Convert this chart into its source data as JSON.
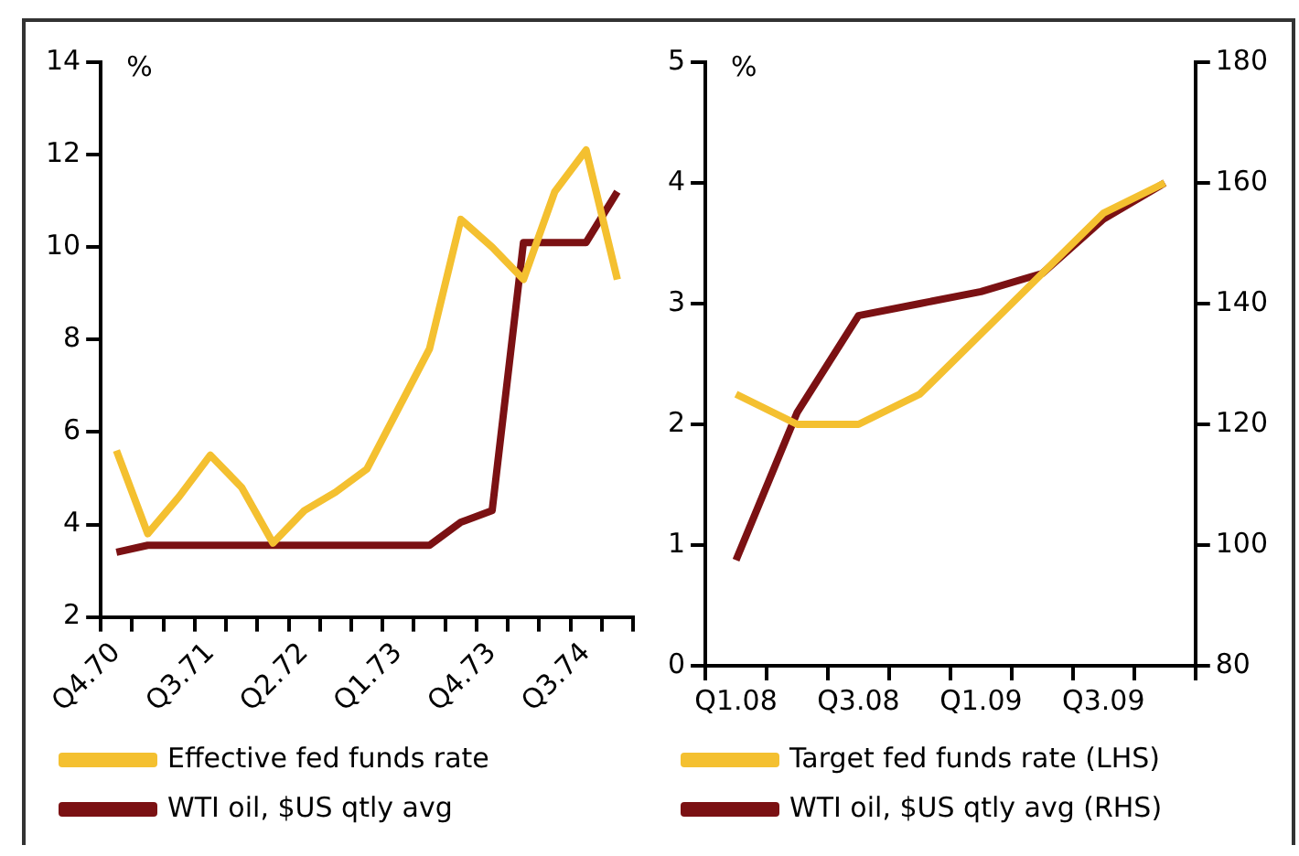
{
  "chart_data": [
    {
      "type": "line",
      "ylabel": "%",
      "categories": [
        "Q4.70",
        null,
        null,
        "Q3.71",
        null,
        null,
        "Q2.72",
        null,
        null,
        "Q1.73",
        null,
        null,
        "Q4.73",
        null,
        null,
        "Q3.74",
        null
      ],
      "series": [
        {
          "name": "Effective fed funds rate",
          "color": "#f4c030",
          "values": [
            5.6,
            3.8,
            4.6,
            5.5,
            4.8,
            3.6,
            4.3,
            4.7,
            5.2,
            6.5,
            7.8,
            10.6,
            10.0,
            9.3,
            11.2,
            12.1,
            9.3
          ]
        },
        {
          "name": "WTI oil, $US qtly avg",
          "color": "#7b1113",
          "values": [
            3.4,
            3.55,
            3.55,
            3.55,
            3.55,
            3.55,
            3.55,
            3.55,
            3.55,
            3.55,
            3.55,
            4.05,
            4.3,
            10.1,
            10.1,
            10.1,
            11.2
          ]
        }
      ],
      "ylim": [
        2,
        14
      ],
      "yticks": [
        2,
        4,
        6,
        8,
        10,
        12,
        14
      ],
      "legend": "bottom",
      "grid": false
    },
    {
      "type": "line",
      "ylabel": "%",
      "categories": [
        "Q1.08",
        null,
        "Q3.08",
        null,
        "Q1.09",
        null,
        "Q3.09",
        null
      ],
      "series": [
        {
          "name": "Target fed funds rate (LHS)",
          "color": "#f4c030",
          "values": [
            2.25,
            2.0,
            2.0,
            2.25,
            2.75,
            3.25,
            3.75,
            4.0
          ]
        },
        {
          "name": "WTI oil, $US qtly avg (RHS)",
          "color": "#7b1113",
          "axis": "y2",
          "values": [
            97.5,
            122,
            138,
            140,
            142,
            145,
            154,
            160
          ]
        }
      ],
      "ylim": [
        0,
        5
      ],
      "yticks": [
        0,
        1,
        2,
        3,
        4,
        5
      ],
      "y2lim": [
        80,
        180
      ],
      "y2ticks": [
        80,
        100,
        120,
        140,
        160,
        180
      ],
      "legend": "bottom",
      "grid": false
    }
  ]
}
